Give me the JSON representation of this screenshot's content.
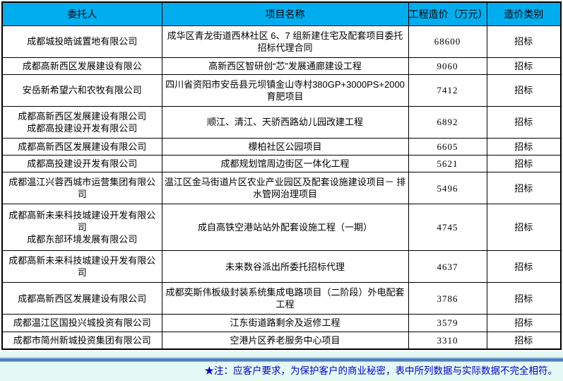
{
  "table": {
    "headers": [
      "委托人",
      "项目名称",
      "工程造价（万元）",
      "造价类别"
    ],
    "rows": [
      {
        "client": "成都城投皓诚置地有限公司",
        "project": "成华区青龙街道西林社区 6、7 组新建住宅及配套项目委托招标代理合同",
        "cost": "68600",
        "category": "招标"
      },
      {
        "client": "成都高新西区发展建设有限公",
        "project": "高新西区智研创“芯”发展通廊建设工程",
        "cost": "9060",
        "category": "招标"
      },
      {
        "client": "安岳新希望六和农牧有限公司",
        "project": "四川省资阳市安岳县元坝镇金山寺村380GP+3000PS+2000育肥项目",
        "cost": "7412",
        "category": "招标"
      },
      {
        "client": "成都高新西区发展建设有限公司\n成都高投建设开发有限公司",
        "project": "顺江、清江、天骄西路幼儿园改建工程",
        "cost": "6892",
        "category": "招标"
      },
      {
        "client": "成都高新西区发展建设有限公司",
        "project": "檬柏社区公园项目",
        "cost": "6605",
        "category": "招标"
      },
      {
        "client": "成都高投建设开发有限公司",
        "project": "成都规划馆周边街区一体化工程",
        "cost": "5621",
        "category": "招标"
      },
      {
        "client": "成都温江兴蓉西城市运营集团有限公司",
        "project": "温江区金马街道片区农业产业园区及配套设施建设项目－ 排水管网治理项目",
        "cost": "5496",
        "category": "招标"
      },
      {
        "client": "成都高新未来科技城建设开发有限公司\n成都东部环境发展有限公司",
        "project": "成自高铁空港站站外配套设施工程（一期）",
        "cost": "4745",
        "category": "招标"
      },
      {
        "client": "成都高新未来科技城建设开发有限公司",
        "project": "未来数谷派出所委托招标代理",
        "cost": "4637",
        "category": "招标"
      },
      {
        "client": "成都高新西区发展建设有限公司",
        "project": "成都奕斯伟板级封装系统集成电路项目（二阶段）外电配套工程",
        "cost": "3786",
        "category": "招标"
      },
      {
        "client": "成都温江区国投兴城投资有限公司",
        "project": "江东街道路剩余及返修工程",
        "cost": "3579",
        "category": "招标"
      },
      {
        "client": "成都市简州新城投资集团有限公司",
        "project": "空港片区养老服务中心项目",
        "cost": "3310",
        "category": "招标"
      }
    ]
  },
  "note": {
    "text": "★注：应客户要求，为保护客户的商业秘密，表中所列数据与实际数据不完全相符。"
  },
  "colors": {
    "header_bg": "#00AEEF",
    "note_text": "#0000CC",
    "footer_bg": "#E3F9F4",
    "divider_dark": "#4F81BD",
    "divider_light": "#BBD2EC",
    "border": "#000000"
  }
}
